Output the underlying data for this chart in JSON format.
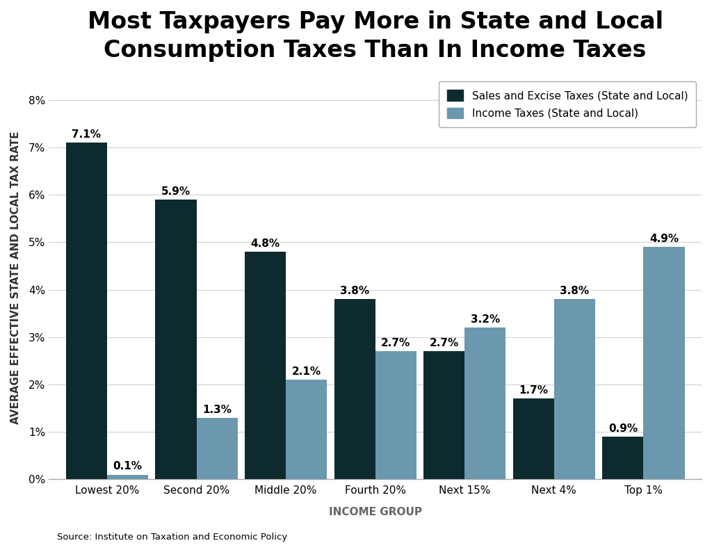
{
  "title": "Most Taxpayers Pay More in State and Local\nConsumption Taxes Than In Income Taxes",
  "categories": [
    "Lowest 20%",
    "Second 20%",
    "Middle 20%",
    "Fourth 20%",
    "Next 15%",
    "Next 4%",
    "Top 1%"
  ],
  "sales_excise": [
    7.1,
    5.9,
    4.8,
    3.8,
    2.7,
    1.7,
    0.9
  ],
  "income_taxes": [
    0.1,
    1.3,
    2.1,
    2.7,
    3.2,
    3.8,
    4.9
  ],
  "sales_color": "#0d2b2e",
  "income_color": "#6b98ae",
  "ylabel": "AVERAGE EFFECTIVE STATE AND LOCAL TAX RATE",
  "xlabel": "INCOME GROUP",
  "ylim": [
    0,
    8.5
  ],
  "yticks": [
    0,
    1,
    2,
    3,
    4,
    5,
    6,
    7,
    8
  ],
  "ytick_labels": [
    "0%",
    "1%",
    "2%",
    "3%",
    "4%",
    "5%",
    "6%",
    "7%",
    "8%"
  ],
  "legend_labels": [
    "Sales and Excise Taxes (State and Local)",
    "Income Taxes (State and Local)"
  ],
  "source_text": "Source: Institute on Taxation and Economic Policy",
  "background_color": "#ffffff",
  "bar_width": 0.46,
  "title_fontsize": 24,
  "label_fontsize": 11,
  "tick_fontsize": 11,
  "annotation_fontsize": 11,
  "xlabel_color": "#666666",
  "ylabel_color": "#333333"
}
